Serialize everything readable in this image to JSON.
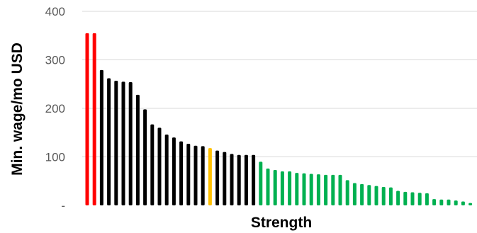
{
  "chart_data": {
    "type": "bar",
    "xlabel": "Strength",
    "ylabel": "Min. wage/mo USD",
    "ylim": [
      0,
      400
    ],
    "yticks": [
      0,
      100,
      200,
      300,
      400
    ],
    "ytick_labels": [
      "-",
      "100",
      "200",
      "300",
      "400"
    ],
    "grid": true,
    "colors": {
      "red": "#ff0000",
      "black": "#000000",
      "orange": "#ffc000",
      "green": "#00b050"
    },
    "bars": [
      {
        "value": 355,
        "color": "red"
      },
      {
        "value": 355,
        "color": "red"
      },
      {
        "value": 279,
        "color": "black"
      },
      {
        "value": 262,
        "color": "black"
      },
      {
        "value": 257,
        "color": "black"
      },
      {
        "value": 255,
        "color": "black"
      },
      {
        "value": 254,
        "color": "black"
      },
      {
        "value": 228,
        "color": "black"
      },
      {
        "value": 198,
        "color": "black"
      },
      {
        "value": 167,
        "color": "black"
      },
      {
        "value": 160,
        "color": "black"
      },
      {
        "value": 146,
        "color": "black"
      },
      {
        "value": 140,
        "color": "black"
      },
      {
        "value": 132,
        "color": "black"
      },
      {
        "value": 127,
        "color": "black"
      },
      {
        "value": 123,
        "color": "black"
      },
      {
        "value": 122,
        "color": "black"
      },
      {
        "value": 118,
        "color": "orange"
      },
      {
        "value": 113,
        "color": "black"
      },
      {
        "value": 110,
        "color": "black"
      },
      {
        "value": 106,
        "color": "black"
      },
      {
        "value": 104,
        "color": "black"
      },
      {
        "value": 104,
        "color": "black"
      },
      {
        "value": 104,
        "color": "black"
      },
      {
        "value": 90,
        "color": "green"
      },
      {
        "value": 76,
        "color": "green"
      },
      {
        "value": 73,
        "color": "green"
      },
      {
        "value": 70,
        "color": "green"
      },
      {
        "value": 70,
        "color": "green"
      },
      {
        "value": 67,
        "color": "green"
      },
      {
        "value": 66,
        "color": "green"
      },
      {
        "value": 65,
        "color": "green"
      },
      {
        "value": 64,
        "color": "green"
      },
      {
        "value": 63,
        "color": "green"
      },
      {
        "value": 63,
        "color": "green"
      },
      {
        "value": 63,
        "color": "green"
      },
      {
        "value": 52,
        "color": "green"
      },
      {
        "value": 46,
        "color": "green"
      },
      {
        "value": 44,
        "color": "green"
      },
      {
        "value": 42,
        "color": "green"
      },
      {
        "value": 40,
        "color": "green"
      },
      {
        "value": 38,
        "color": "green"
      },
      {
        "value": 37,
        "color": "green"
      },
      {
        "value": 30,
        "color": "green"
      },
      {
        "value": 28,
        "color": "green"
      },
      {
        "value": 27,
        "color": "green"
      },
      {
        "value": 26,
        "color": "green"
      },
      {
        "value": 25,
        "color": "green"
      },
      {
        "value": 13,
        "color": "green"
      },
      {
        "value": 12,
        "color": "green"
      },
      {
        "value": 12,
        "color": "green"
      },
      {
        "value": 10,
        "color": "green"
      },
      {
        "value": 8,
        "color": "green"
      },
      {
        "value": 5,
        "color": "green"
      }
    ]
  }
}
